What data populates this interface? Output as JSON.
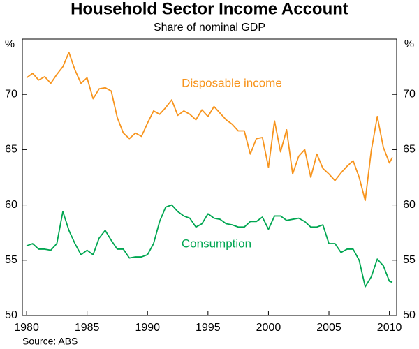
{
  "chart_data": {
    "type": "line",
    "title": "Household Sector Income Account",
    "subtitle": "Share of nominal GDP",
    "y_unit": "%",
    "source": "Source: ABS",
    "x": [
      1980,
      1980.5,
      1981,
      1981.5,
      1982,
      1982.5,
      1983,
      1983.5,
      1984,
      1984.5,
      1985,
      1985.5,
      1986,
      1986.5,
      1987,
      1987.5,
      1988,
      1988.5,
      1989,
      1989.5,
      1990,
      1990.5,
      1991,
      1991.5,
      1992,
      1992.5,
      1993,
      1993.5,
      1994,
      1994.5,
      1995,
      1995.5,
      1996,
      1996.5,
      1997,
      1997.5,
      1998,
      1998.5,
      1999,
      1999.5,
      2000,
      2000.5,
      2001,
      2001.5,
      2002,
      2002.5,
      2003,
      2003.5,
      2004,
      2004.5,
      2005,
      2005.5,
      2006,
      2006.5,
      2007,
      2007.5,
      2008,
      2008.5,
      2009,
      2009.5,
      2010,
      2010.25
    ],
    "series": [
      {
        "name": "Disposable income",
        "color": "#f7941d",
        "values": [
          71.5,
          71.9,
          71.3,
          71.6,
          71.0,
          71.8,
          72.5,
          73.8,
          72.2,
          71.0,
          71.5,
          69.6,
          70.5,
          70.6,
          70.3,
          67.9,
          66.5,
          66.0,
          66.5,
          66.2,
          67.4,
          68.5,
          68.2,
          68.8,
          69.5,
          68.1,
          68.5,
          68.2,
          67.7,
          68.6,
          68.0,
          68.9,
          68.3,
          67.7,
          67.3,
          66.7,
          66.7,
          64.6,
          66.0,
          66.1,
          63.4,
          67.6,
          64.8,
          66.8,
          62.8,
          64.4,
          65.0,
          62.5,
          64.6,
          63.3,
          62.8,
          62.2,
          62.9,
          63.5,
          64.0,
          62.5,
          60.4,
          64.9,
          68.0,
          65.2,
          63.8,
          64.3
        ]
      },
      {
        "name": "Consumption",
        "color": "#00a651",
        "values": [
          56.3,
          56.5,
          56.0,
          56.0,
          55.9,
          56.5,
          59.4,
          57.7,
          56.5,
          55.5,
          55.9,
          55.5,
          57.0,
          57.7,
          56.8,
          56.0,
          56.0,
          55.2,
          55.3,
          55.3,
          55.5,
          56.5,
          58.5,
          59.8,
          60.0,
          59.4,
          59.0,
          58.8,
          58.0,
          58.3,
          59.2,
          58.8,
          58.7,
          58.3,
          58.2,
          58.0,
          58.0,
          58.5,
          58.5,
          58.9,
          57.8,
          59.0,
          59.0,
          58.6,
          58.7,
          58.8,
          58.5,
          58.0,
          58.0,
          58.2,
          56.5,
          56.5,
          55.7,
          56.0,
          56.0,
          55.0,
          52.6,
          53.5,
          55.1,
          54.5,
          53.1,
          53.0
        ]
      }
    ],
    "xlim": [
      1979.65,
      2010.6
    ],
    "xticks": [
      1980,
      1985,
      1990,
      1995,
      2000,
      2005,
      2010
    ],
    "ylim": [
      50,
      75
    ],
    "yticks": [
      50,
      55,
      60,
      65,
      70
    ]
  }
}
